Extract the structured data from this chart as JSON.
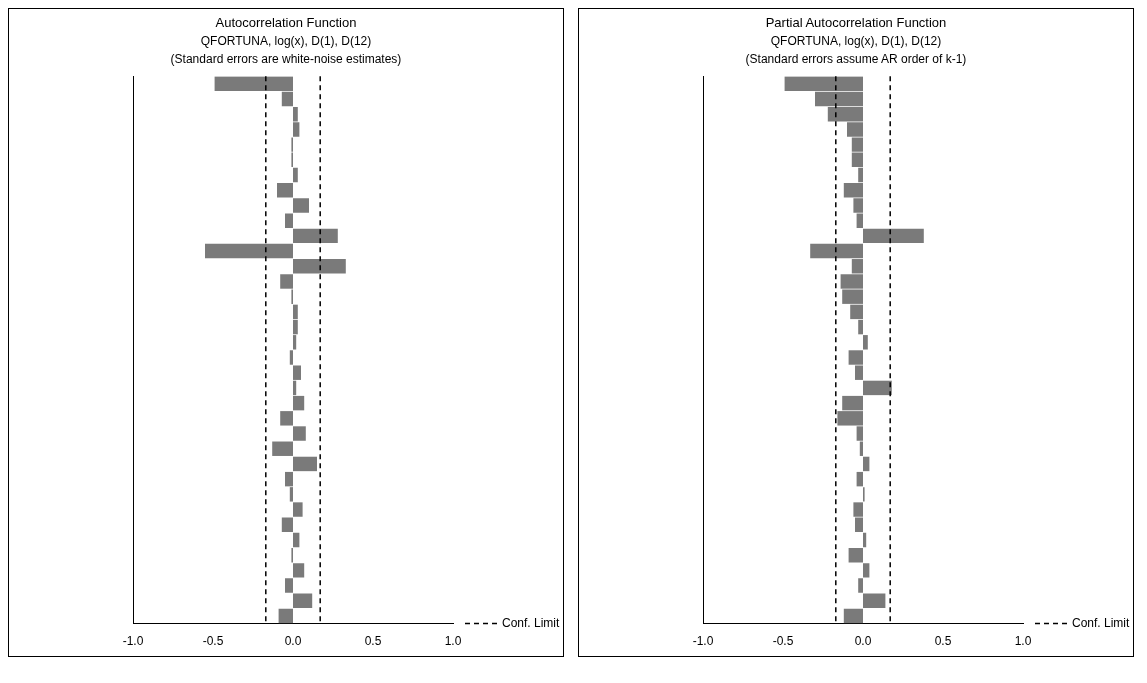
{
  "chart_data": [
    {
      "type": "bar",
      "orientation": "horizontal",
      "title": "Autocorrelation Function",
      "subtitle": "QFORTUNA, log(x), D(1), D(12)",
      "annotations": [
        "(Standard errors are white-noise estimates)"
      ],
      "categories": [
        null,
        null,
        null,
        null,
        null,
        null,
        null,
        null,
        null,
        null,
        null,
        null,
        null,
        null,
        null,
        null,
        null,
        null,
        null,
        null,
        null,
        null,
        null,
        null,
        null,
        null,
        null,
        null,
        null,
        null,
        null,
        null,
        null,
        null,
        null,
        null
      ],
      "values": [
        -0.49,
        -0.07,
        0.03,
        0.04,
        -0.01,
        -0.01,
        0.03,
        -0.1,
        0.1,
        -0.05,
        0.28,
        -0.55,
        0.33,
        -0.08,
        -0.01,
        0.03,
        0.03,
        0.02,
        -0.02,
        0.05,
        0.02,
        0.07,
        -0.08,
        0.08,
        -0.13,
        0.15,
        -0.05,
        -0.02,
        0.06,
        -0.07,
        0.04,
        -0.01,
        0.07,
        -0.05,
        0.12,
        -0.09
      ],
      "color": "#7a7a7a",
      "xlim": [
        -1,
        1
      ],
      "xticks": [
        {
          "value": -1,
          "label": "-1.0"
        },
        {
          "value": -0.5,
          "label": "-0.5"
        },
        {
          "value": 0,
          "label": "0.0"
        },
        {
          "value": 0.5,
          "label": "0.5"
        },
        {
          "value": 1,
          "label": "1.0"
        }
      ],
      "ref_lines": [
        {
          "axis": "x",
          "value": -0.17,
          "label": "Conf. Limit",
          "line_style": "dashed"
        },
        {
          "axis": "x",
          "value": 0.17,
          "label": null,
          "line_style": "dashed"
        }
      ],
      "grid": false,
      "legend": "bottom right"
    },
    {
      "type": "bar",
      "orientation": "horizontal",
      "title": "Partial Autocorrelation Function",
      "subtitle": "QFORTUNA, log(x), D(1), D(12)",
      "annotations": [
        "(Standard errors assume AR order of k-1)"
      ],
      "categories": [
        null,
        null,
        null,
        null,
        null,
        null,
        null,
        null,
        null,
        null,
        null,
        null,
        null,
        null,
        null,
        null,
        null,
        null,
        null,
        null,
        null,
        null,
        null,
        null,
        null,
        null,
        null,
        null,
        null,
        null,
        null,
        null,
        null,
        null,
        null,
        null
      ],
      "values": [
        -0.49,
        -0.3,
        -0.22,
        -0.1,
        -0.07,
        -0.07,
        -0.03,
        -0.12,
        -0.06,
        -0.04,
        0.38,
        -0.33,
        -0.07,
        -0.14,
        -0.13,
        -0.08,
        -0.03,
        0.03,
        -0.09,
        -0.05,
        0.18,
        -0.13,
        -0.16,
        -0.04,
        -0.02,
        0.04,
        -0.04,
        0.01,
        -0.06,
        -0.05,
        0.02,
        -0.09,
        0.04,
        -0.03,
        0.14,
        -0.12
      ],
      "color": "#7a7a7a",
      "xlim": [
        -1,
        1
      ],
      "xticks": [
        {
          "value": -1,
          "label": "-1.0"
        },
        {
          "value": -0.5,
          "label": "-0.5"
        },
        {
          "value": 0,
          "label": "0.0"
        },
        {
          "value": 0.5,
          "label": "0.5"
        },
        {
          "value": 1,
          "label": "1.0"
        }
      ],
      "ref_lines": [
        {
          "axis": "x",
          "value": -0.17,
          "label": "Conf. Limit",
          "line_style": "dashed"
        },
        {
          "axis": "x",
          "value": 0.17,
          "label": null,
          "line_style": "dashed"
        }
      ],
      "grid": false,
      "legend": "bottom right"
    }
  ]
}
